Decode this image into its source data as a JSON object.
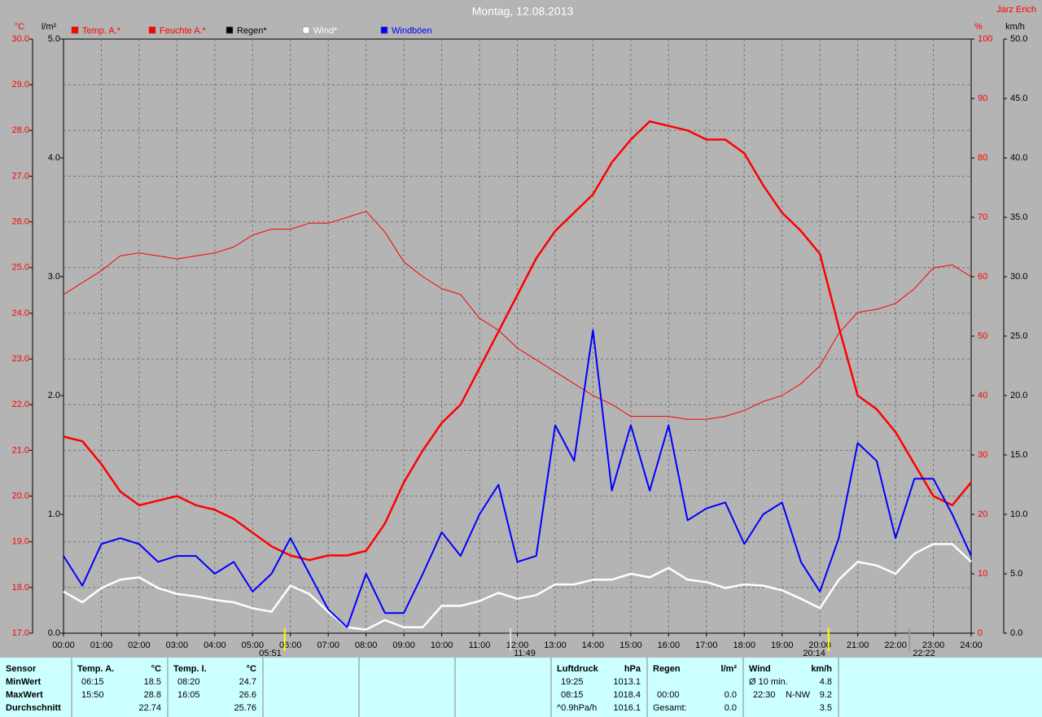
{
  "chart_data": {
    "type": "line",
    "title": "Montag, 12.08.2013",
    "author": "Jarz Erich",
    "y_unit": "°C",
    "y4_unit": "l/m²",
    "y2_unit": "%",
    "y3_unit": "km/h",
    "x": [
      0,
      0.5,
      1,
      1.5,
      2,
      2.5,
      3,
      3.5,
      4,
      4.5,
      5,
      5.5,
      6,
      6.5,
      7,
      7.5,
      8,
      8.5,
      9,
      9.5,
      10,
      10.5,
      11,
      11.5,
      12,
      12.5,
      13,
      13.5,
      14,
      14.5,
      15,
      15.5,
      16,
      16.5,
      17,
      17.5,
      18,
      18.5,
      19,
      19.5,
      20,
      20.5,
      21,
      21.5,
      22,
      22.5,
      23,
      23.5,
      24
    ],
    "xlim": [
      0,
      24
    ],
    "xticks": [
      {
        "value": 0,
        "label": "00:00"
      },
      {
        "value": 1,
        "label": "01:00"
      },
      {
        "value": 2,
        "label": "02:00"
      },
      {
        "value": 3,
        "label": "03:00"
      },
      {
        "value": 4,
        "label": "04:00"
      },
      {
        "value": 5,
        "label": "05:00"
      },
      {
        "value": 6,
        "label": "06:00"
      },
      {
        "value": 7,
        "label": "07:00"
      },
      {
        "value": 8,
        "label": "08:00"
      },
      {
        "value": 9,
        "label": "09:00"
      },
      {
        "value": 10,
        "label": "10:00"
      },
      {
        "value": 11,
        "label": "11:00"
      },
      {
        "value": 12,
        "label": "12:00"
      },
      {
        "value": 13,
        "label": "13:00"
      },
      {
        "value": 14,
        "label": "14:00"
      },
      {
        "value": 15,
        "label": "15:00"
      },
      {
        "value": 16,
        "label": "16:00"
      },
      {
        "value": 17,
        "label": "17:00"
      },
      {
        "value": 18,
        "label": "18:00"
      },
      {
        "value": 19,
        "label": "19:00"
      },
      {
        "value": 20,
        "label": "20:00"
      },
      {
        "value": 21,
        "label": "21:00"
      },
      {
        "value": 22,
        "label": "22:00"
      },
      {
        "value": 23,
        "label": "23:00"
      },
      {
        "value": 24,
        "label": "24:00"
      }
    ],
    "ylim": [
      17,
      30
    ],
    "yticks": [
      {
        "value": 17,
        "label": "17.0"
      },
      {
        "value": 18,
        "label": "18.0"
      },
      {
        "value": 19,
        "label": "19.0"
      },
      {
        "value": 20,
        "label": "20.0"
      },
      {
        "value": 21,
        "label": "21.0"
      },
      {
        "value": 22,
        "label": "22.0"
      },
      {
        "value": 23,
        "label": "23.0"
      },
      {
        "value": 24,
        "label": "24.0"
      },
      {
        "value": 25,
        "label": "25.0"
      },
      {
        "value": 26,
        "label": "26.0"
      },
      {
        "value": 27,
        "label": "27.0"
      },
      {
        "value": 28,
        "label": "28.0"
      },
      {
        "value": 29,
        "label": "29.0"
      },
      {
        "value": 30,
        "label": "30.0"
      }
    ],
    "y4lim": [
      0,
      5
    ],
    "y4ticks": [
      {
        "value": 0,
        "label": "0.0"
      },
      {
        "value": 1,
        "label": "1.0"
      },
      {
        "value": 2,
        "label": "2.0"
      },
      {
        "value": 3,
        "label": "3.0"
      },
      {
        "value": 4,
        "label": "4.0"
      },
      {
        "value": 5,
        "label": "5.0"
      }
    ],
    "y2lim": [
      0,
      100
    ],
    "y2ticks": [
      0,
      10,
      20,
      30,
      40,
      50,
      60,
      70,
      80,
      90,
      100
    ],
    "y3lim": [
      0,
      50
    ],
    "y3ticks": [
      {
        "value": 0,
        "label": "0.0"
      },
      {
        "value": 5,
        "label": "5.0"
      },
      {
        "value": 10,
        "label": "10.0"
      },
      {
        "value": 15,
        "label": "15.0"
      },
      {
        "value": 20,
        "label": "20.0"
      },
      {
        "value": 25,
        "label": "25.0"
      },
      {
        "value": 30,
        "label": "30.0"
      },
      {
        "value": 35,
        "label": "35.0"
      },
      {
        "value": 40,
        "label": "40.0"
      },
      {
        "value": 45,
        "label": "45.0"
      },
      {
        "value": 50,
        "label": "50.0"
      }
    ],
    "grid": true,
    "series": [
      {
        "name": "Temp. A.*",
        "color": "#ff0000",
        "axis": "y",
        "values": [
          21.3,
          21.2,
          20.7,
          20.1,
          19.8,
          19.9,
          20.0,
          19.8,
          19.7,
          19.5,
          19.2,
          18.9,
          18.7,
          18.6,
          18.7,
          18.7,
          18.8,
          19.4,
          20.3,
          21.0,
          21.6,
          22.0,
          22.8,
          23.6,
          24.4,
          25.2,
          25.8,
          26.2,
          26.6,
          27.3,
          27.8,
          28.2,
          28.1,
          28.0,
          27.8,
          27.8,
          27.5,
          26.8,
          26.2,
          25.8,
          25.3,
          23.7,
          22.2,
          21.9,
          21.4,
          20.7,
          20.0,
          19.8,
          20.3
        ]
      },
      {
        "name": "Feuchte A.*",
        "color": "#ff0000",
        "axis": "y2",
        "values": [
          57,
          59,
          61,
          63.5,
          64,
          63.5,
          63,
          63.5,
          64,
          65,
          67,
          68,
          68,
          69,
          69,
          70,
          71,
          67.5,
          62.5,
          60,
          58,
          57,
          53,
          51,
          48,
          46,
          44,
          42,
          40,
          38.5,
          36.5,
          36.5,
          36.5,
          36,
          36,
          36.5,
          37.5,
          39,
          40,
          42,
          45,
          50.5,
          54,
          54.5,
          55.5,
          58,
          61.5,
          62,
          60
        ]
      },
      {
        "name": "Regen*",
        "color": "#000000",
        "axis": "y4",
        "values": [
          0,
          0,
          0,
          0,
          0,
          0,
          0,
          0,
          0,
          0,
          0,
          0,
          0,
          0,
          0,
          0,
          0,
          0,
          0,
          0,
          0,
          0,
          0,
          0,
          0,
          0,
          0,
          0,
          0,
          0,
          0,
          0,
          0,
          0,
          0,
          0,
          0,
          0,
          0,
          0,
          0,
          0,
          0,
          0,
          0,
          0,
          0,
          0,
          0
        ]
      },
      {
        "name": "Wind*",
        "color": "#ffffff",
        "axis": "y3",
        "values": [
          3.5,
          2.6,
          3.8,
          4.5,
          4.7,
          3.8,
          3.3,
          3.1,
          2.8,
          2.6,
          2.1,
          1.8,
          4.0,
          3.3,
          1.8,
          0.5,
          0.3,
          1.1,
          0.5,
          0.5,
          2.3,
          2.3,
          2.7,
          3.4,
          2.9,
          3.2,
          4.1,
          4.1,
          4.5,
          4.5,
          5.0,
          4.7,
          5.5,
          4.5,
          4.3,
          3.8,
          4.1,
          4.0,
          3.6,
          2.9,
          2.1,
          4.5,
          6.0,
          5.7,
          5.0,
          6.7,
          7.5,
          7.5,
          6.0
        ]
      },
      {
        "name": "Windböen",
        "color": "#0000ff",
        "axis": "y3",
        "values": [
          6.5,
          4,
          7.5,
          8,
          7.5,
          6,
          6.5,
          6.5,
          5,
          6,
          3.5,
          5,
          8,
          5,
          2,
          0.5,
          5,
          1.7,
          1.7,
          5,
          8.5,
          6.5,
          10,
          12.5,
          6,
          6.5,
          17.5,
          14.5,
          25.5,
          12,
          17.5,
          12,
          17.5,
          9.5,
          10.5,
          11,
          7.5,
          10,
          11,
          6,
          3.5,
          8,
          16,
          14.5,
          8,
          13,
          13,
          10,
          6.5
        ]
      }
    ],
    "annotations": [
      {
        "x": 5.85,
        "label": "05:51"
      },
      {
        "x": 11.82,
        "label": "11:49"
      },
      {
        "x": 20.23,
        "label": "20:14"
      },
      {
        "x": 22.37,
        "label": "22:22"
      }
    ]
  },
  "stats": {
    "sensor": {
      "header": "Sensor",
      "rows": [
        "MinWert",
        "MaxWert",
        "Durchschnitt"
      ]
    },
    "temp_a": {
      "header": "Temp. A.",
      "unit": "°C",
      "rows": [
        {
          "time": "06:15",
          "value": "18.5"
        },
        {
          "time": "15:50",
          "value": "28.8"
        },
        {
          "value": "22.74"
        }
      ]
    },
    "temp_i": {
      "header": "Temp. I.",
      "unit": "°C",
      "rows": [
        {
          "time": "08:20",
          "value": "24.7"
        },
        {
          "time": "16:05",
          "value": "26.6"
        },
        {
          "value": "25.76"
        }
      ]
    },
    "luftdruck": {
      "header": "Luftdruck",
      "unit": "hPa",
      "rows": [
        {
          "time": "19:25",
          "value": "1013.1"
        },
        {
          "time": "08:15",
          "value": "1018.4"
        },
        {
          "time": "^0.9hPa/h",
          "value": "1016.1"
        }
      ]
    },
    "regen": {
      "header": "Regen",
      "unit": "l/m²",
      "rows": [
        {
          "time": "00:00",
          "value": "0.0"
        },
        {
          "time": "Gesamt:",
          "value": "0.0"
        }
      ]
    },
    "wind": {
      "header": "Wind",
      "unit": "km/h",
      "rows": [
        {
          "time": "Ø 10 min.",
          "value": "4.8"
        },
        {
          "time": "22:30",
          "dir": "N-NW",
          "value": "9.2"
        },
        {
          "value": "3.5"
        }
      ]
    }
  }
}
